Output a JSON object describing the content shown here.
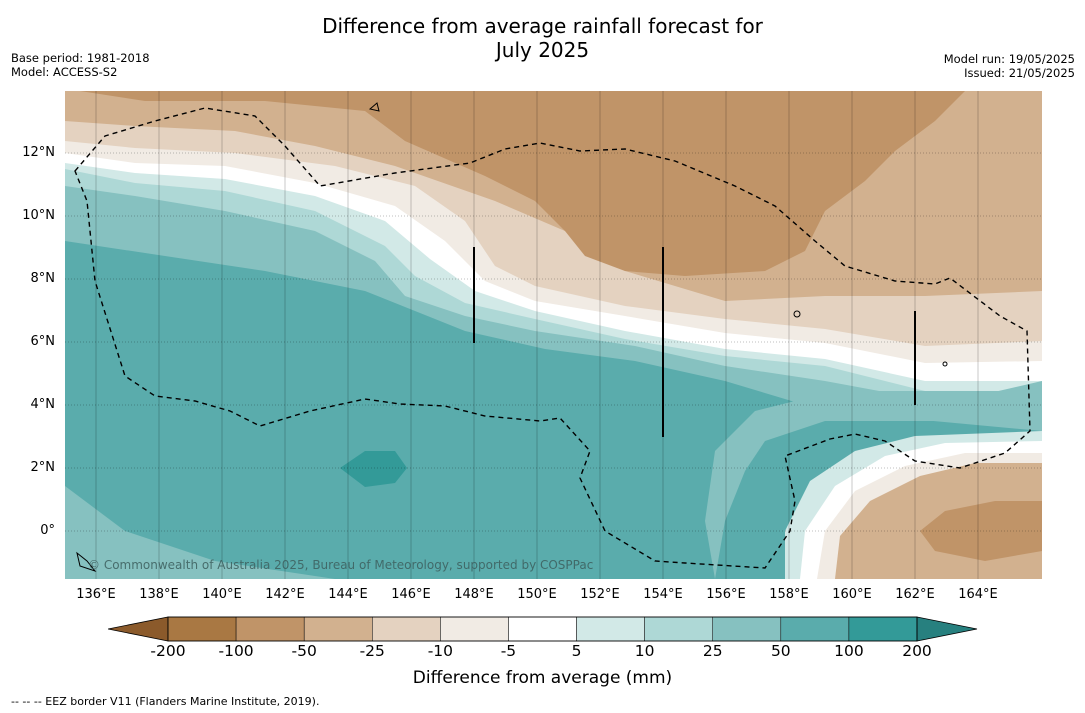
{
  "title_line1": "Difference from average rainfall forecast for",
  "title_line2": "July 2025",
  "base_period": "Base period: 1981-2018",
  "model": "Model: ACCESS-S2",
  "model_run": "Model run: 19/05/2025",
  "issued": "Issued: 21/05/2025",
  "copyright": "© Commonwealth of Australia 2025, Bureau of Meteorology, supported by COSPPac",
  "lat_labels": [
    "12°N",
    "10°N",
    "8°N",
    "6°N",
    "4°N",
    "2°N",
    "0°"
  ],
  "lon_labels": [
    "136°E",
    "138°E",
    "140°E",
    "142°E",
    "144°E",
    "146°E",
    "148°E",
    "150°E",
    "152°E",
    "154°E",
    "156°E",
    "158°E",
    "160°E",
    "162°E",
    "164°E"
  ],
  "colorbar": {
    "title": "Difference from average (mm)",
    "tick_labels": [
      "-200",
      "-100",
      "-50",
      "-25",
      "-10",
      "-5",
      "5",
      "10",
      "25",
      "50",
      "100",
      "200"
    ],
    "colors": [
      "#8b5a2b",
      "#a97843",
      "#c09468",
      "#d2b18f",
      "#e4d2c0",
      "#f1ebe4",
      "#ffffff",
      "#d2e9e7",
      "#aed8d6",
      "#86c1c0",
      "#5aacac",
      "#339a98",
      "#27807f"
    ]
  },
  "footnote": "-- -- -- EEZ border V11 (Flanders Marine Institute, 2019)."
}
